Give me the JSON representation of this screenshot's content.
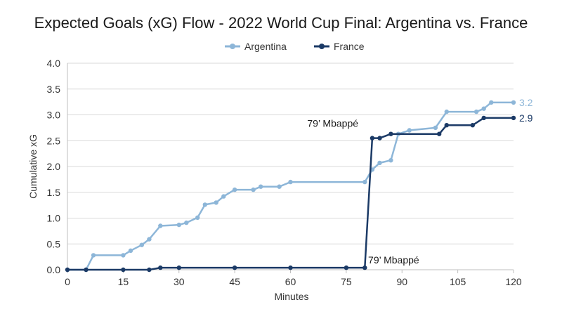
{
  "chart_data": {
    "type": "line",
    "title": "Expected Goals (xG) Flow - 2022 World Cup Final: Argentina vs. France",
    "xlabel": "Minutes",
    "ylabel": "Cumulative xG",
    "xlim": [
      0,
      120
    ],
    "ylim": [
      0,
      4.0
    ],
    "xticks": [
      0,
      15,
      30,
      45,
      60,
      75,
      90,
      105,
      120
    ],
    "yticks": [
      "0.0",
      "0.5",
      "1.0",
      "1.5",
      "2.0",
      "2.5",
      "3.0",
      "3.5",
      "4.0"
    ],
    "grid": "horizontal",
    "legend_position": "top-center",
    "series": [
      {
        "name": "Argentina",
        "color": "#8db6d8",
        "end_label": "3.2",
        "points": [
          [
            0,
            0.0
          ],
          [
            5,
            0.0
          ],
          [
            7,
            0.28
          ],
          [
            15,
            0.28
          ],
          [
            17,
            0.37
          ],
          [
            20,
            0.48
          ],
          [
            22,
            0.59
          ],
          [
            25,
            0.85
          ],
          [
            30,
            0.87
          ],
          [
            32,
            0.91
          ],
          [
            35,
            1.01
          ],
          [
            37,
            1.26
          ],
          [
            40,
            1.3
          ],
          [
            42,
            1.42
          ],
          [
            45,
            1.55
          ],
          [
            50,
            1.55
          ],
          [
            52,
            1.61
          ],
          [
            57,
            1.61
          ],
          [
            60,
            1.7
          ],
          [
            80,
            1.7
          ],
          [
            82,
            1.94
          ],
          [
            84,
            2.07
          ],
          [
            87,
            2.12
          ],
          [
            89,
            2.63
          ],
          [
            92,
            2.7
          ],
          [
            99,
            2.75
          ],
          [
            102,
            3.06
          ],
          [
            110,
            3.06
          ],
          [
            112,
            3.12
          ],
          [
            114,
            3.24
          ],
          [
            120,
            3.24
          ]
        ]
      },
      {
        "name": "France",
        "color": "#1b3a66",
        "end_label": "2.9",
        "points": [
          [
            0,
            0.0
          ],
          [
            5,
            0.0
          ],
          [
            15,
            0.0
          ],
          [
            22,
            0.0
          ],
          [
            25,
            0.04
          ],
          [
            30,
            0.04
          ],
          [
            45,
            0.04
          ],
          [
            60,
            0.04
          ],
          [
            75,
            0.04
          ],
          [
            80,
            0.04
          ],
          [
            82,
            2.55
          ],
          [
            84,
            2.55
          ],
          [
            87,
            2.63
          ],
          [
            100,
            2.63
          ],
          [
            102,
            2.8
          ],
          [
            109,
            2.8
          ],
          [
            112,
            2.94
          ],
          [
            120,
            2.94
          ]
        ]
      }
    ],
    "annotations": [
      {
        "text": "79’ Mbappé",
        "x": 79,
        "y": 2.55,
        "placement": "upper-left"
      },
      {
        "text": "79’ Mbappé",
        "x": 79,
        "y": 0.04,
        "placement": "lower-right"
      }
    ]
  }
}
